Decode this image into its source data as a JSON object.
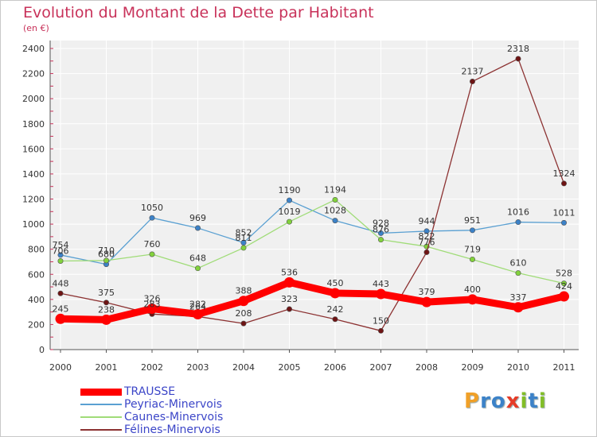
{
  "chart_data": {
    "type": "line",
    "title": "Evolution du Montant de la Dette par Habitant",
    "ylabel": "(en €)",
    "xlabel": "",
    "ylim": [
      0,
      2400
    ],
    "yticks": [
      0,
      200,
      400,
      600,
      800,
      1000,
      1200,
      1400,
      1600,
      1800,
      2000,
      2200,
      2400
    ],
    "grid": true,
    "legend_position": "bottom-left",
    "x": [
      "2000",
      "2001",
      "2002",
      "2003",
      "2004",
      "2005",
      "2006",
      "2007",
      "2008",
      "2009",
      "2010",
      "2011"
    ],
    "series": [
      {
        "name": "Peyriac-Minervois",
        "color": "#5aa0d2",
        "marker": "#3c82c8",
        "values": [
          754,
          680,
          1050,
          969,
          852,
          1190,
          1028,
          928,
          944,
          951,
          1016,
          1011
        ]
      },
      {
        "name": "Caunes-Minervois",
        "color": "#a0dc78",
        "marker": "#82d23c",
        "values": [
          706,
          710,
          760,
          648,
          811,
          1019,
          1194,
          876,
          822,
          719,
          610,
          528
        ]
      },
      {
        "name": "Félines-Minervois",
        "color": "#8c3232",
        "marker": "#6e1414",
        "values": [
          448,
          375,
          283,
          264,
          208,
          323,
          242,
          150,
          776,
          2137,
          2318,
          1324
        ]
      },
      {
        "name": "TRAUSSE",
        "color": "#ff0000",
        "marker": "#ff0000",
        "thick": true,
        "values": [
          245,
          238,
          326,
          282,
          388,
          536,
          450,
          443,
          379,
          400,
          337,
          424
        ]
      }
    ]
  },
  "logo": {
    "letters": [
      "P",
      "r",
      "o",
      "x",
      "i",
      "t",
      "i"
    ],
    "colors": [
      "#f0a028",
      "#3c82c8",
      "#3c82c8",
      "#e63c28",
      "#82be28",
      "#3c82c8",
      "#82be28"
    ]
  }
}
